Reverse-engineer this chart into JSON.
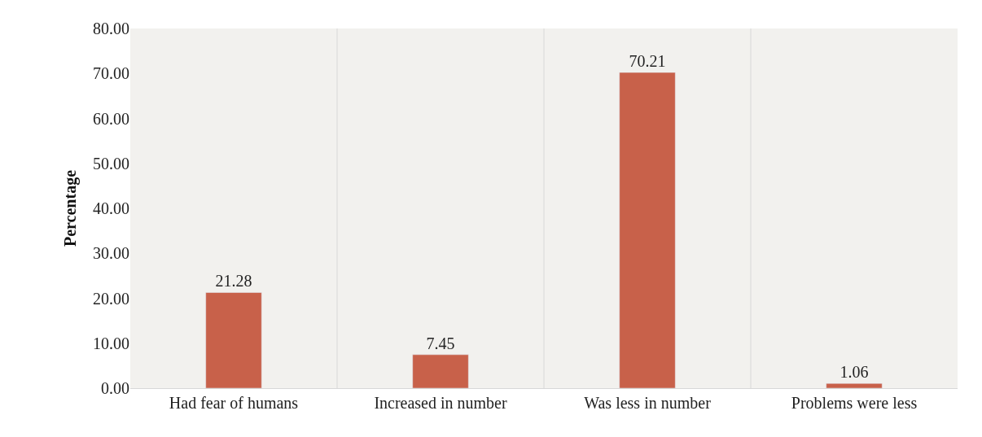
{
  "chart_data": {
    "type": "bar",
    "ylabel": "Percentage",
    "categories": [
      "Had fear of humans",
      "Increased in number",
      "Was less in number",
      "Problems were less"
    ],
    "values": [
      21.28,
      7.45,
      70.21,
      1.06
    ],
    "color": "#c8614a",
    "ylim": [
      0,
      80
    ],
    "yticks": [
      {
        "value": 0,
        "label": "0.00"
      },
      {
        "value": 10,
        "label": "10.00"
      },
      {
        "value": 20,
        "label": "20.00"
      },
      {
        "value": 30,
        "label": "30.00"
      },
      {
        "value": 40,
        "label": "40.00"
      },
      {
        "value": 50,
        "label": "50.00"
      },
      {
        "value": 60,
        "label": "60.00"
      },
      {
        "value": 70,
        "label": "70.00"
      },
      {
        "value": 80,
        "label": "80.00"
      }
    ],
    "data_labels": true
  }
}
